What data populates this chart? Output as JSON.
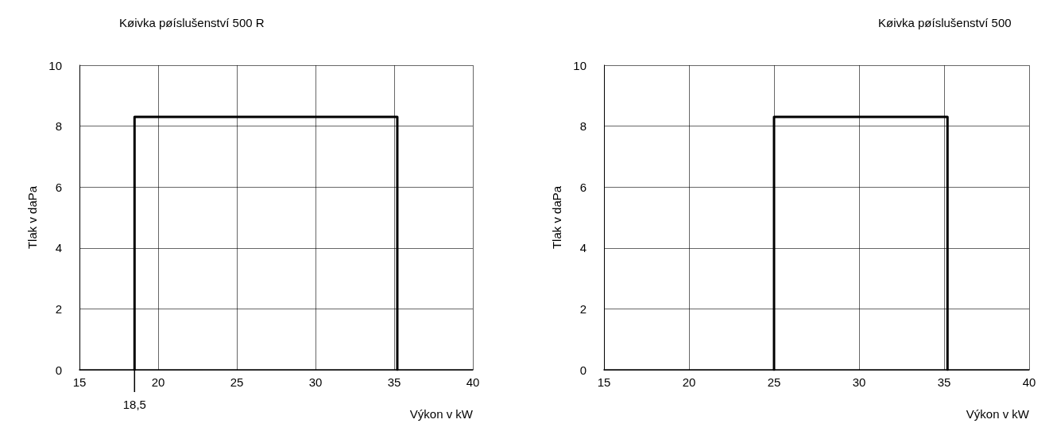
{
  "chart_data": [
    {
      "type": "line",
      "title": "Køivka pøíslušenství 500 R",
      "xlabel": "Výkon v kW",
      "ylabel": "Tlak v daPa",
      "x": [
        18.5,
        18.5,
        35.2,
        35.2
      ],
      "values": [
        0,
        8.3,
        8.3,
        0
      ],
      "color": "#000000",
      "xlim": [
        15,
        40
      ],
      "xticks": [
        15,
        20,
        25,
        30,
        35,
        40
      ],
      "ylim": [
        0,
        10
      ],
      "yticks": [
        0,
        2,
        4,
        6,
        8,
        10
      ],
      "grid": true,
      "marker": "none",
      "line_style": "solid",
      "annotations": [
        {
          "text": "18,5",
          "x": 18.5,
          "y": 0
        }
      ]
    },
    {
      "type": "line",
      "title": "Køivka pøíslušenství 500",
      "xlabel": "Výkon v kW",
      "ylabel": "Tlak v daPa",
      "x": [
        25,
        25,
        35.2,
        35.2
      ],
      "values": [
        0,
        8.3,
        8.3,
        0
      ],
      "color": "#000000",
      "xlim": [
        15,
        40
      ],
      "xticks": [
        15,
        20,
        25,
        30,
        35,
        40
      ],
      "ylim": [
        0,
        10
      ],
      "yticks": [
        0,
        2,
        4,
        6,
        8,
        10
      ],
      "grid": true,
      "marker": "none",
      "line_style": "solid"
    }
  ]
}
